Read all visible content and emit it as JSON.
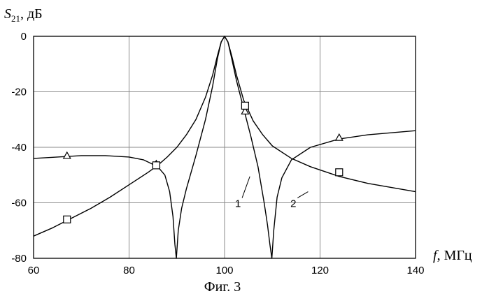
{
  "chart_data": {
    "type": "line",
    "ylabel_symbol": "S",
    "ylabel_sub": "21",
    "ylabel_unit": ", дБ",
    "xlabel_symbol": "f",
    "xlabel_unit": ", МГц",
    "caption": "Фиг. 3",
    "xlim": [
      60,
      140
    ],
    "ylim": [
      -80,
      0
    ],
    "xticks": [
      60,
      80,
      100,
      120,
      140
    ],
    "yticks": [
      0,
      -20,
      -40,
      -60,
      -80
    ],
    "grid": true,
    "series": [
      {
        "name": "1",
        "marker": "triangle",
        "x": [
          60,
          65,
          70,
          75,
          80,
          83,
          86,
          87.5,
          88.5,
          89.2,
          89.6,
          89.9,
          90.3,
          91,
          92,
          94,
          96,
          97.5,
          98.5,
          99.3,
          100,
          100.7,
          101.5,
          102.5,
          104,
          105.5,
          107,
          108.3,
          109,
          109.5,
          109.9,
          110.3,
          111,
          112,
          114,
          118,
          124,
          130,
          140
        ],
        "y": [
          -44,
          -43.5,
          -43,
          -43,
          -43.5,
          -44.5,
          -47,
          -50,
          -56,
          -65,
          -75,
          -80,
          -70,
          -62,
          -55,
          -43,
          -30,
          -18,
          -8,
          -2,
          0,
          -2,
          -8,
          -16,
          -26,
          -36,
          -47,
          -60,
          -68,
          -75,
          -80,
          -70,
          -58,
          -51,
          -44.5,
          -40,
          -37,
          -35.5,
          -34
        ]
      },
      {
        "name": "2",
        "marker": "square",
        "x": [
          60,
          64,
          68,
          72,
          76,
          80,
          84,
          86,
          88,
          90,
          92,
          94,
          96,
          97.5,
          98.5,
          99.3,
          100,
          100.7,
          101.5,
          102.5,
          104,
          106,
          108,
          110,
          114,
          118,
          124,
          130,
          140
        ],
        "y": [
          -72,
          -69,
          -65.5,
          -62,
          -58,
          -53.5,
          -49,
          -46.5,
          -43.5,
          -40,
          -35.5,
          -30,
          -22,
          -14,
          -7,
          -2,
          0,
          -2,
          -7,
          -14,
          -23,
          -30.5,
          -35.5,
          -39.5,
          -44,
          -47,
          -50.5,
          -53,
          -56
        ]
      }
    ],
    "markers": [
      {
        "series": "1",
        "shape": "triangle",
        "x": 67,
        "y": -43
      },
      {
        "series": "1",
        "shape": "triangle",
        "x": 85.7,
        "y": -46
      },
      {
        "series": "1",
        "shape": "triangle",
        "x": 104.3,
        "y": -27
      },
      {
        "series": "1",
        "shape": "triangle",
        "x": 124,
        "y": -36.5
      },
      {
        "series": "2",
        "shape": "square",
        "x": 67,
        "y": -66
      },
      {
        "series": "2",
        "shape": "square",
        "x": 85.7,
        "y": -46.5
      },
      {
        "series": "2",
        "shape": "square",
        "x": 104.3,
        "y": -25
      },
      {
        "series": "2",
        "shape": "square",
        "x": 124,
        "y": -49
      }
    ],
    "callouts": [
      {
        "label": "1",
        "x": 102.8,
        "y": -61.5,
        "to_x": 105.3,
        "to_y": -50.5
      },
      {
        "label": "2",
        "x": 114.4,
        "y": -61.5,
        "to_x": 117.5,
        "to_y": -56
      }
    ]
  }
}
